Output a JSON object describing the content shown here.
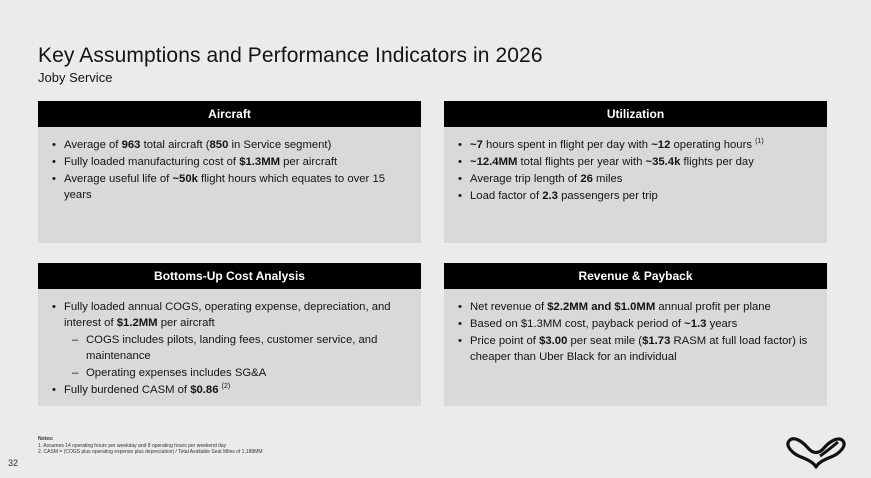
{
  "title": "Key Assumptions and Performance Indicators in 2026",
  "subtitle": "Joby Service",
  "panels": {
    "aircraft": {
      "header": "Aircraft",
      "items": [
        [
          {
            "t": "Average of "
          },
          {
            "t": "963",
            "b": true
          },
          {
            "t": " total aircraft ("
          },
          {
            "t": "850",
            "b": true
          },
          {
            "t": " in Service segment)"
          }
        ],
        [
          {
            "t": "Fully loaded manufacturing cost of "
          },
          {
            "t": "$1.3MM",
            "b": true
          },
          {
            "t": " per aircraft"
          }
        ],
        [
          {
            "t": "Average useful life of "
          },
          {
            "t": "~50k",
            "b": true
          },
          {
            "t": " flight hours which equates to over 15 years"
          }
        ]
      ]
    },
    "utilization": {
      "header": "Utilization",
      "items": [
        [
          {
            "t": "~7",
            "b": true
          },
          {
            "t": " hours spent in flight per day with "
          },
          {
            "t": "~12",
            "b": true
          },
          {
            "t": " operating hours "
          },
          {
            "t": "(1)",
            "sup": true
          }
        ],
        [
          {
            "t": "~12.4MM",
            "b": true
          },
          {
            "t": " total flights per year with "
          },
          {
            "t": "~35.4k",
            "b": true
          },
          {
            "t": " flights per day"
          }
        ],
        [
          {
            "t": "Average trip length of "
          },
          {
            "t": "26",
            "b": true
          },
          {
            "t": " miles"
          }
        ],
        [
          {
            "t": "Load factor of "
          },
          {
            "t": "2.3",
            "b": true
          },
          {
            "t": " passengers per trip"
          }
        ]
      ]
    },
    "cost": {
      "header": "Bottoms-Up Cost Analysis",
      "items": [
        {
          "segs": [
            {
              "t": "Fully loaded annual COGS, operating expense, depreciation, and interest of "
            },
            {
              "t": "$1.2MM",
              "b": true
            },
            {
              "t": " per aircraft"
            }
          ]
        },
        {
          "dash": true,
          "segs": [
            {
              "t": "COGS includes pilots, landing fees, customer service, and maintenance"
            }
          ]
        },
        {
          "dash": true,
          "segs": [
            {
              "t": "Operating expenses includes SG&A"
            }
          ]
        },
        {
          "segs": [
            {
              "t": "Fully burdened CASM of "
            },
            {
              "t": "$0.86",
              "b": true
            },
            {
              "t": " "
            },
            {
              "t": "(2)",
              "sup": true
            }
          ]
        }
      ]
    },
    "revenue": {
      "header": "Revenue & Payback",
      "items": [
        [
          {
            "t": "Net revenue of "
          },
          {
            "t": "$2.2MM and $1.0MM",
            "b": true
          },
          {
            "t": " annual profit per plane"
          }
        ],
        [
          {
            "t": "Based on $1.3MM cost, payback period of "
          },
          {
            "t": "~1.3",
            "b": true
          },
          {
            "t": " years"
          }
        ],
        [
          {
            "t": "Price point of "
          },
          {
            "t": "$3.00",
            "b": true
          },
          {
            "t": " per seat mile ("
          },
          {
            "t": "$1.73",
            "b": true
          },
          {
            "t": " RASM at full load factor) is cheaper than Uber Black for an individual"
          }
        ]
      ]
    }
  },
  "notes": {
    "label": "Notes:",
    "lines": [
      "1.  Assumes 14 operating hours per weekday and 8 operating hours per weekend day",
      "2.  CASM = (COGS plus operating expense plus depreciation) / Total Available Seat Miles of 1,188MM"
    ]
  },
  "page_number": "32",
  "logo_icon": "joby-logo-icon"
}
